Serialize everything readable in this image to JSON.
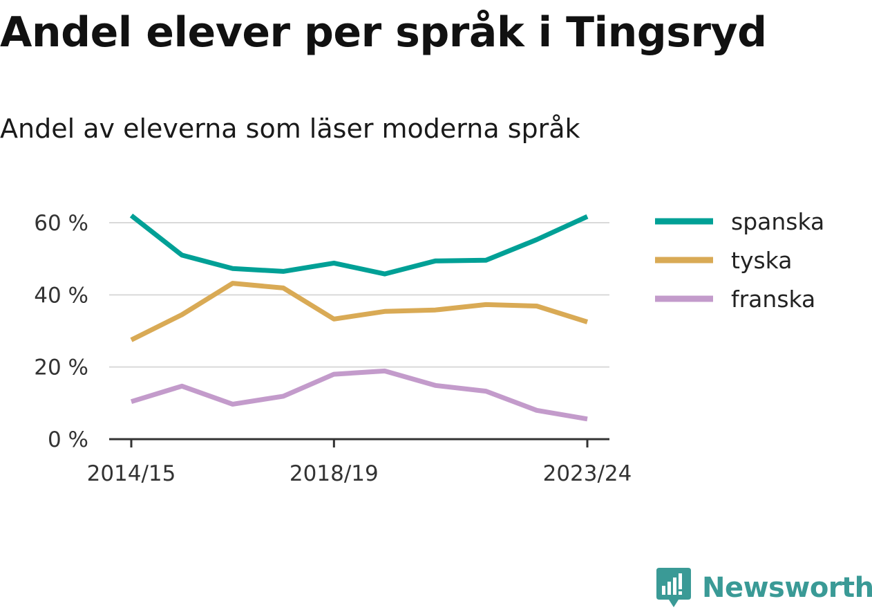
{
  "header": {
    "title": "Andel elever per språk i Tingsryd",
    "subtitle": "Andel av eleverna som läser moderna språk"
  },
  "brand": {
    "name": "Newsworthy",
    "color": "#3a9a96",
    "icon": "newsworthy-logo-icon"
  },
  "chart_data": {
    "type": "line",
    "x": [
      "2014/15",
      "2015/16",
      "2016/17",
      "2017/18",
      "2018/19",
      "2019/20",
      "2020/21",
      "2021/22",
      "2022/23",
      "2023/24"
    ],
    "x_tick_labels": [
      "2014/15",
      "2018/19",
      "2023/24"
    ],
    "y_ticks": [
      0,
      20,
      40,
      60
    ],
    "y_tick_labels": [
      "0 %",
      "20 %",
      "40 %",
      "60 %"
    ],
    "ylim": [
      0,
      62
    ],
    "grid": true,
    "legend_position": "right",
    "series": [
      {
        "name": "spanska",
        "color": "#00a096",
        "values": [
          62,
          51,
          47.3,
          46.5,
          48.8,
          45.8,
          49.4,
          49.6,
          55.3,
          61.7
        ]
      },
      {
        "name": "tyska",
        "color": "#d9aa55",
        "values": [
          27.5,
          34.5,
          43.2,
          41.9,
          33.3,
          35.4,
          35.8,
          37.3,
          36.9,
          32.5
        ]
      },
      {
        "name": "franska",
        "color": "#c39bcb",
        "values": [
          10.4,
          14.7,
          9.7,
          11.9,
          18,
          18.9,
          14.9,
          13.3,
          8,
          5.6
        ]
      }
    ]
  }
}
